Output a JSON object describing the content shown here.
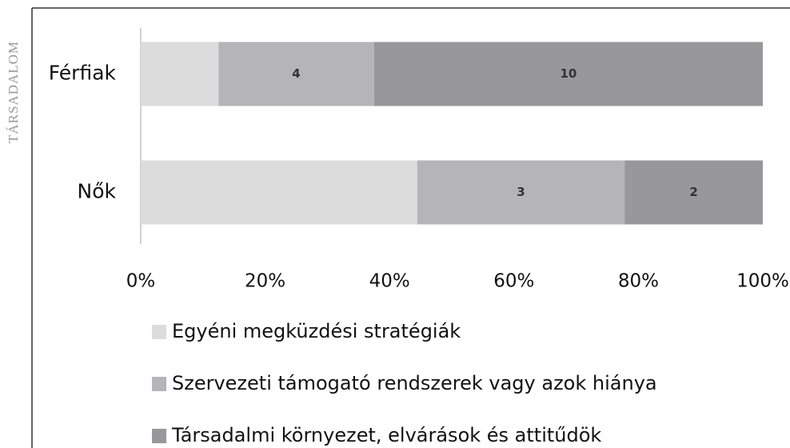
{
  "side_label": "TÁRSADALOM",
  "chart_data": {
    "type": "bar",
    "orientation": "horizontal",
    "percent_stacked": true,
    "categories": [
      "Férfiak",
      "Nők"
    ],
    "series": [
      {
        "name": "Egyéni megküzdési stratégiák",
        "color": "#dcdcdc",
        "values": [
          2,
          4
        ],
        "show_labels": false
      },
      {
        "name": "Szervezeti támogató rendszerek vagy azok hiánya",
        "color": "#b5b5b7",
        "values": [
          4,
          3
        ],
        "show_labels": true
      },
      {
        "name": "Társadalmi környezet, elvárások és attitűdök",
        "color": "#98989a",
        "values": [
          10,
          2
        ],
        "show_labels": true
      }
    ],
    "xlim": [
      0,
      100
    ],
    "xticks": [
      {
        "value": 0,
        "label": "0%"
      },
      {
        "value": 20,
        "label": "20%"
      },
      {
        "value": 40,
        "label": "40%"
      },
      {
        "value": 60,
        "label": "60%"
      },
      {
        "value": 80,
        "label": "80%"
      },
      {
        "value": 100,
        "label": "100%"
      }
    ],
    "legend": "bottom"
  }
}
